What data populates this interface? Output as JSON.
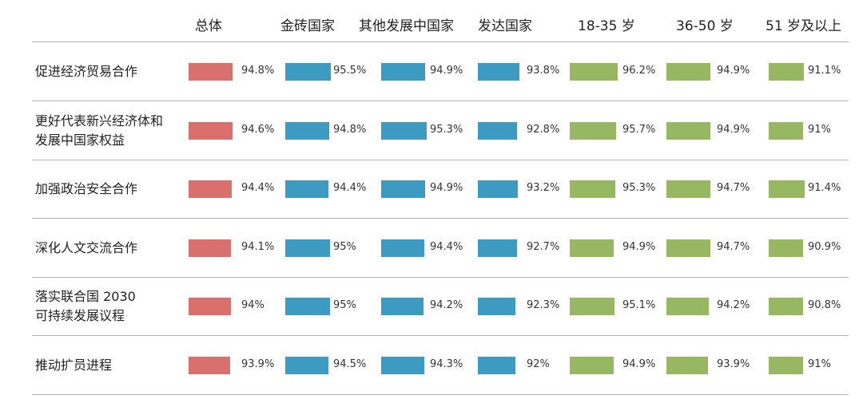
{
  "colors": {
    "overall": "#d9706e",
    "country": "#3d9bc1",
    "age": "#97b762",
    "rule": "#b5b5b5"
  },
  "columns": [
    {
      "label": "总体",
      "group": "overall"
    },
    {
      "label": "金砖国家",
      "group": "country"
    },
    {
      "label": "其他发展中国家",
      "group": "country"
    },
    {
      "label": "发达国家",
      "group": "country"
    },
    {
      "label": "18-35 岁",
      "group": "age"
    },
    {
      "label": "36-50 岁",
      "group": "age"
    },
    {
      "label": "51 岁及以上",
      "group": "age"
    }
  ],
  "rows": [
    {
      "label_lines": [
        "促进经济贸易合作"
      ],
      "values": [
        "94.8%",
        "95.5%",
        "94.9%",
        "93.8%",
        "96.2%",
        "94.9%",
        "91.1%"
      ]
    },
    {
      "label_lines": [
        "更好代表新兴经济体和",
        "发展中国家权益"
      ],
      "values": [
        "94.6%",
        "94.8%",
        "95.3%",
        "92.8%",
        "95.7%",
        "94.9%",
        "91%"
      ]
    },
    {
      "label_lines": [
        "加强政治安全合作"
      ],
      "values": [
        "94.4%",
        "94.4%",
        "94.9%",
        "93.2%",
        "95.3%",
        "94.7%",
        "91.4%"
      ]
    },
    {
      "label_lines": [
        "深化人文交流合作"
      ],
      "values": [
        "94.1%",
        "95%",
        "94.4%",
        "92.7%",
        "94.9%",
        "94.7%",
        "90.9%"
      ]
    },
    {
      "label_lines": [
        "落实联合国 2030",
        "可持续发展议程"
      ],
      "values": [
        "94%",
        "95%",
        "94.2%",
        "92.3%",
        "95.1%",
        "94.2%",
        "90.8%"
      ]
    },
    {
      "label_lines": [
        "推动扩员进程"
      ],
      "values": [
        "93.9%",
        "94.5%",
        "94.3%",
        "92%",
        "94.9%",
        "93.9%",
        "91%"
      ]
    }
  ],
  "chart_data": {
    "type": "bar",
    "title": "",
    "xlabel": "",
    "ylabel": "",
    "orientation": "horizontal-table",
    "categories": [
      "促进经济贸易合作",
      "更好代表新兴经济体和发展中国家权益",
      "加强政治安全合作",
      "深化人文交流合作",
      "落实联合国 2030 可持续发展议程",
      "推动扩员进程"
    ],
    "series": [
      {
        "name": "总体",
        "values": [
          94.8,
          94.6,
          94.4,
          94.1,
          94.0,
          93.9
        ]
      },
      {
        "name": "金砖国家",
        "values": [
          95.5,
          94.8,
          94.4,
          95.0,
          95.0,
          94.5
        ]
      },
      {
        "name": "其他发展中国家",
        "values": [
          94.9,
          95.3,
          94.9,
          94.4,
          94.2,
          94.3
        ]
      },
      {
        "name": "发达国家",
        "values": [
          93.8,
          92.8,
          93.2,
          92.7,
          92.3,
          92.0
        ]
      },
      {
        "name": "18-35 岁",
        "values": [
          96.2,
          95.7,
          95.3,
          94.9,
          95.1,
          94.9
        ]
      },
      {
        "name": "36-50 岁",
        "values": [
          94.9,
          94.9,
          94.7,
          94.7,
          94.2,
          93.9
        ]
      },
      {
        "name": "51 岁及以上",
        "values": [
          91.1,
          91.0,
          91.4,
          90.9,
          90.8,
          91.0
        ]
      }
    ],
    "unit": "%",
    "grid": false,
    "legend": "column headers"
  }
}
